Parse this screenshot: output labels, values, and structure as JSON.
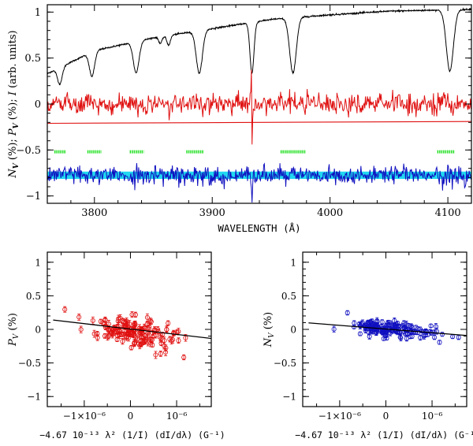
{
  "colors": {
    "intensity": "#000000",
    "polarisation": "#e01010",
    "null": "#1010c0",
    "null_band": "#20d8f0",
    "mask": "#20e020",
    "points_P": "#e01010",
    "points_N": "#1010c0"
  },
  "chart_data": [
    {
      "type": "line",
      "xlabel": "WAVELENGTH (Å)",
      "ylabel_parts": {
        "n": "N",
        "p": "P",
        "v": "V",
        "tail1": " (%); ",
        "tail2": " (%); ",
        "i": "I",
        "tail3": " (arb. units)"
      },
      "xlim": [
        3760,
        4120
      ],
      "ylim": [
        -1.08,
        1.08
      ],
      "xticks": [
        3800,
        3900,
        4000,
        4100
      ],
      "xtick_labels": [
        "3800",
        "3900",
        "4000",
        "4100"
      ],
      "yticks": [
        -1,
        -0.5,
        0,
        0.5,
        1
      ],
      "ytick_labels": [
        "−1",
        "−0.5",
        "0",
        "0.5",
        "1"
      ],
      "intensity": {
        "continuum": [
          [
            3760,
            0.33
          ],
          [
            3800,
            0.58
          ],
          [
            3850,
            0.72
          ],
          [
            3900,
            0.82
          ],
          [
            3950,
            0.92
          ],
          [
            4000,
            0.97
          ],
          [
            4050,
            1.01
          ],
          [
            4120,
            1.03
          ]
        ],
        "lines": [
          {
            "center": 3770.6,
            "depth": 0.45,
            "width": 2.0
          },
          {
            "center": 3797.9,
            "depth": 0.47,
            "width": 2.2
          },
          {
            "center": 3835.4,
            "depth": 0.5,
            "width": 2.4
          },
          {
            "center": 3856.0,
            "depth": 0.1,
            "width": 1.4
          },
          {
            "center": 3863.0,
            "depth": 0.14,
            "width": 1.5
          },
          {
            "center": 3889.0,
            "depth": 0.58,
            "width": 2.6
          },
          {
            "center": 3933.7,
            "depth": 0.62,
            "width": 1.7
          },
          {
            "center": 3968.5,
            "depth": 0.64,
            "width": 2.8
          },
          {
            "center": 4101.7,
            "depth": 0.65,
            "width": 3.0
          }
        ]
      },
      "polarisation_offset": 0,
      "null_offset": -0.78,
      "p_reference_line": [
        [
          3760,
          -0.21
        ],
        [
          4120,
          -0.19
        ]
      ],
      "null_band": [
        -0.815,
        -0.735
      ],
      "mask_y": -0.52,
      "mask_segments": [
        [
          3766,
          3776
        ],
        [
          3794,
          3806
        ],
        [
          3830,
          3842
        ],
        [
          3878,
          3893
        ],
        [
          3958,
          3979
        ],
        [
          4091,
          4106
        ]
      ]
    },
    {
      "type": "scatter",
      "xlabel": "−4.67 10⁻¹³ λ² (1/I) (dI/dλ) (G⁻¹)",
      "ylabel_parts": {
        "p": "P",
        "v": "V",
        "tail": " (%)"
      },
      "xlim": [
        -1.8e-06,
        1.75e-06
      ],
      "ylim": [
        -1.15,
        1.15
      ],
      "xticks": [
        -1e-06,
        0,
        1e-06
      ],
      "xtick_labels": [
        "−1×10⁻⁶",
        "0",
        "10⁻⁶"
      ],
      "yticks": [
        -1,
        -0.5,
        0,
        0.5,
        1
      ],
      "ytick_labels": [
        "−1",
        "−0.5",
        "0",
        "0.5",
        "1"
      ],
      "fit": {
        "slope": -80000,
        "intercept": 0.005
      },
      "n_points": 160,
      "scatter_sd": 0.085,
      "error_bar": 0.042
    },
    {
      "type": "scatter",
      "xlabel": "−4.67 10⁻¹³ λ² (1/I) (dI/dλ) (G⁻¹)",
      "ylabel_parts": {
        "n": "N",
        "v": "V",
        "tail": " (%)"
      },
      "xlim": [
        -1.8e-06,
        1.75e-06
      ],
      "ylim": [
        -1.15,
        1.15
      ],
      "xticks": [
        -1e-06,
        0,
        1e-06
      ],
      "xtick_labels": [
        "−1×10⁻⁶",
        "0",
        "10⁻⁶"
      ],
      "yticks": [
        -1,
        -0.5,
        0,
        0.5,
        1
      ],
      "ytick_labels": [
        "−1",
        "−0.5",
        "0",
        "0.5",
        "1"
      ],
      "fit": {
        "slope": -55000,
        "intercept": 0.005
      },
      "n_points": 160,
      "scatter_sd": 0.055,
      "error_bar": 0.035
    }
  ]
}
